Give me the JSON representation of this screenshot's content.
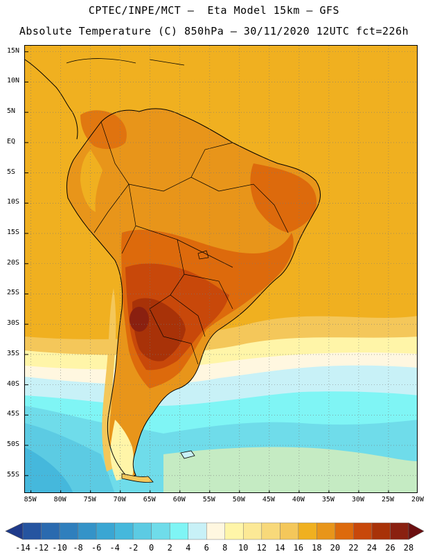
{
  "header": {
    "title_line1": "CPTEC/INPE/MCT –  Eta Model 15km – GFS",
    "title_line2": "Absolute Temperature (C) 850hPa – 30/11/2020 12UTC fct=226h"
  },
  "map": {
    "region": "South America",
    "lat_labels": [
      "15N",
      "10N",
      "5N",
      "EQ",
      "5S",
      "10S",
      "15S",
      "20S",
      "25S",
      "30S",
      "35S",
      "40S",
      "45S",
      "50S",
      "55S"
    ],
    "lon_labels": [
      "85W",
      "80W",
      "75W",
      "70W",
      "65W",
      "60W",
      "55W",
      "50W",
      "45W",
      "40W",
      "35W",
      "30W",
      "25W",
      "20W"
    ],
    "lat_range": [
      16,
      -58
    ],
    "lon_range": [
      -86,
      -20
    ],
    "grid": "dotted",
    "ocean_tropical_level": "16-18",
    "ocean_south_level": "2-6"
  },
  "colorbar": {
    "levels": [
      "-14",
      "-12",
      "-10",
      "-8",
      "-6",
      "-4",
      "-2",
      "0",
      "2",
      "4",
      "6",
      "8",
      "10",
      "12",
      "14",
      "16",
      "18",
      "20",
      "22",
      "24",
      "26",
      "28"
    ],
    "colors": [
      "#1e3a8a",
      "#2554a0",
      "#2a6aaf",
      "#2f7fbd",
      "#3493c8",
      "#3aa6d3",
      "#45b8dc",
      "#5ccbe3",
      "#6fdcea",
      "#7ff5f5",
      "#c8f1f7",
      "#fff7e0",
      "#fff5a8",
      "#fce996",
      "#f8d97a",
      "#f4c75a",
      "#f0b020",
      "#e8951a",
      "#dd6a0c",
      "#c8480a",
      "#a83208",
      "#8a2010",
      "#6b0f10"
    ]
  }
}
